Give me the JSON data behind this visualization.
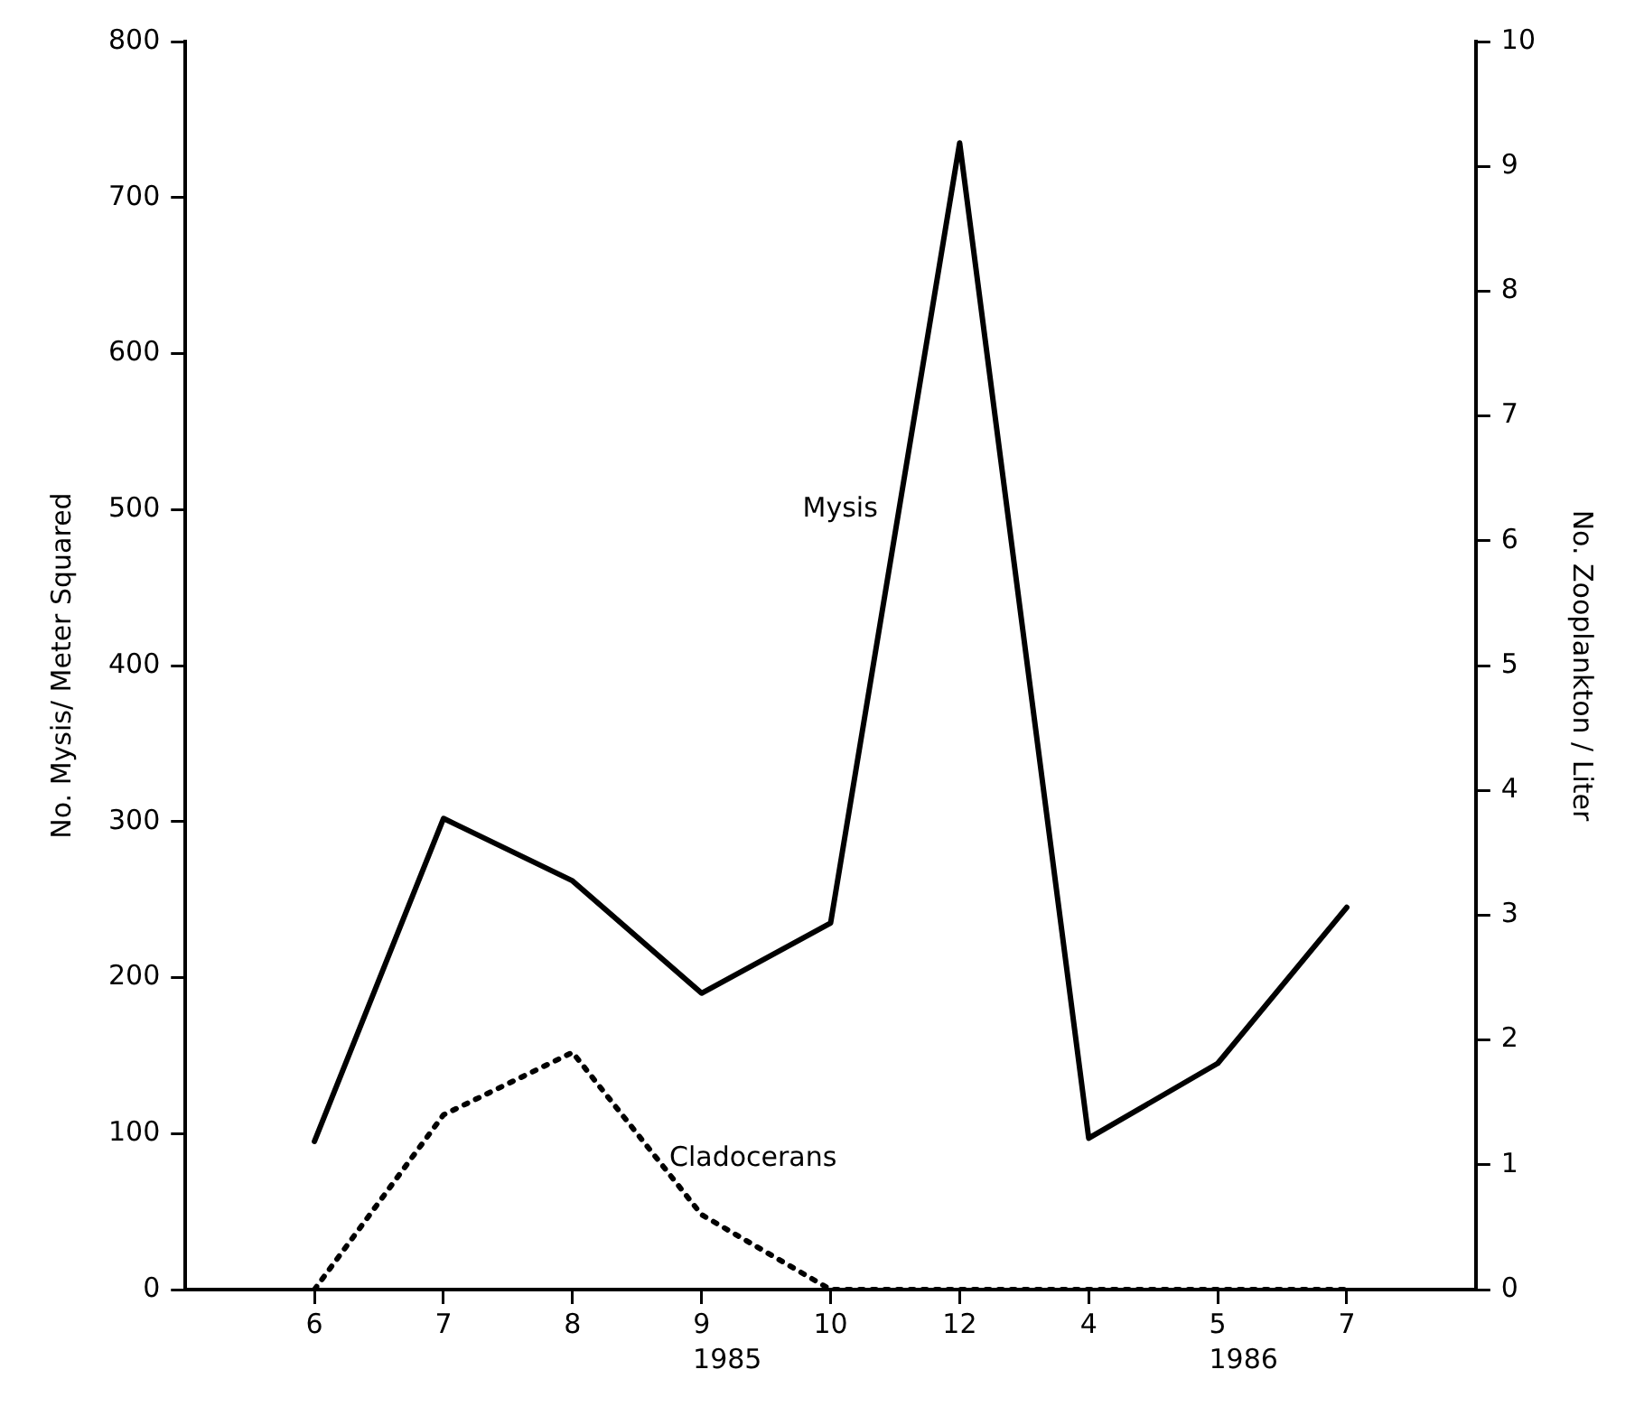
{
  "chart_data": {
    "type": "line",
    "ylabel": "No. Mysis/ Meter Squared",
    "y2label": "No. Zooplankton / Liter",
    "categories": [
      "6",
      "7",
      "8",
      "9",
      "10",
      "12",
      "4",
      "5",
      "7"
    ],
    "series": [
      {
        "name": "Mysis",
        "color": "#000000",
        "line_style": "solid",
        "values": [
          95,
          302,
          262,
          190,
          235,
          735,
          97,
          145,
          245
        ]
      },
      {
        "name": "Cladocerans",
        "color": "#000000",
        "line_style": "dotted",
        "axis": "y2",
        "values": [
          0,
          1.4,
          1.9,
          0.6,
          0,
          0,
          0,
          0,
          0
        ]
      }
    ],
    "ylim": [
      0,
      800
    ],
    "yticks": [
      0,
      100,
      200,
      300,
      400,
      500,
      600,
      700,
      800
    ],
    "y2lim": [
      0,
      10
    ],
    "y2ticks": [
      0,
      1,
      2,
      3,
      4,
      5,
      6,
      7,
      8,
      9,
      10
    ],
    "annotations": [
      "1985",
      "1986"
    ],
    "grid": false,
    "legend": false,
    "marker": "none"
  }
}
